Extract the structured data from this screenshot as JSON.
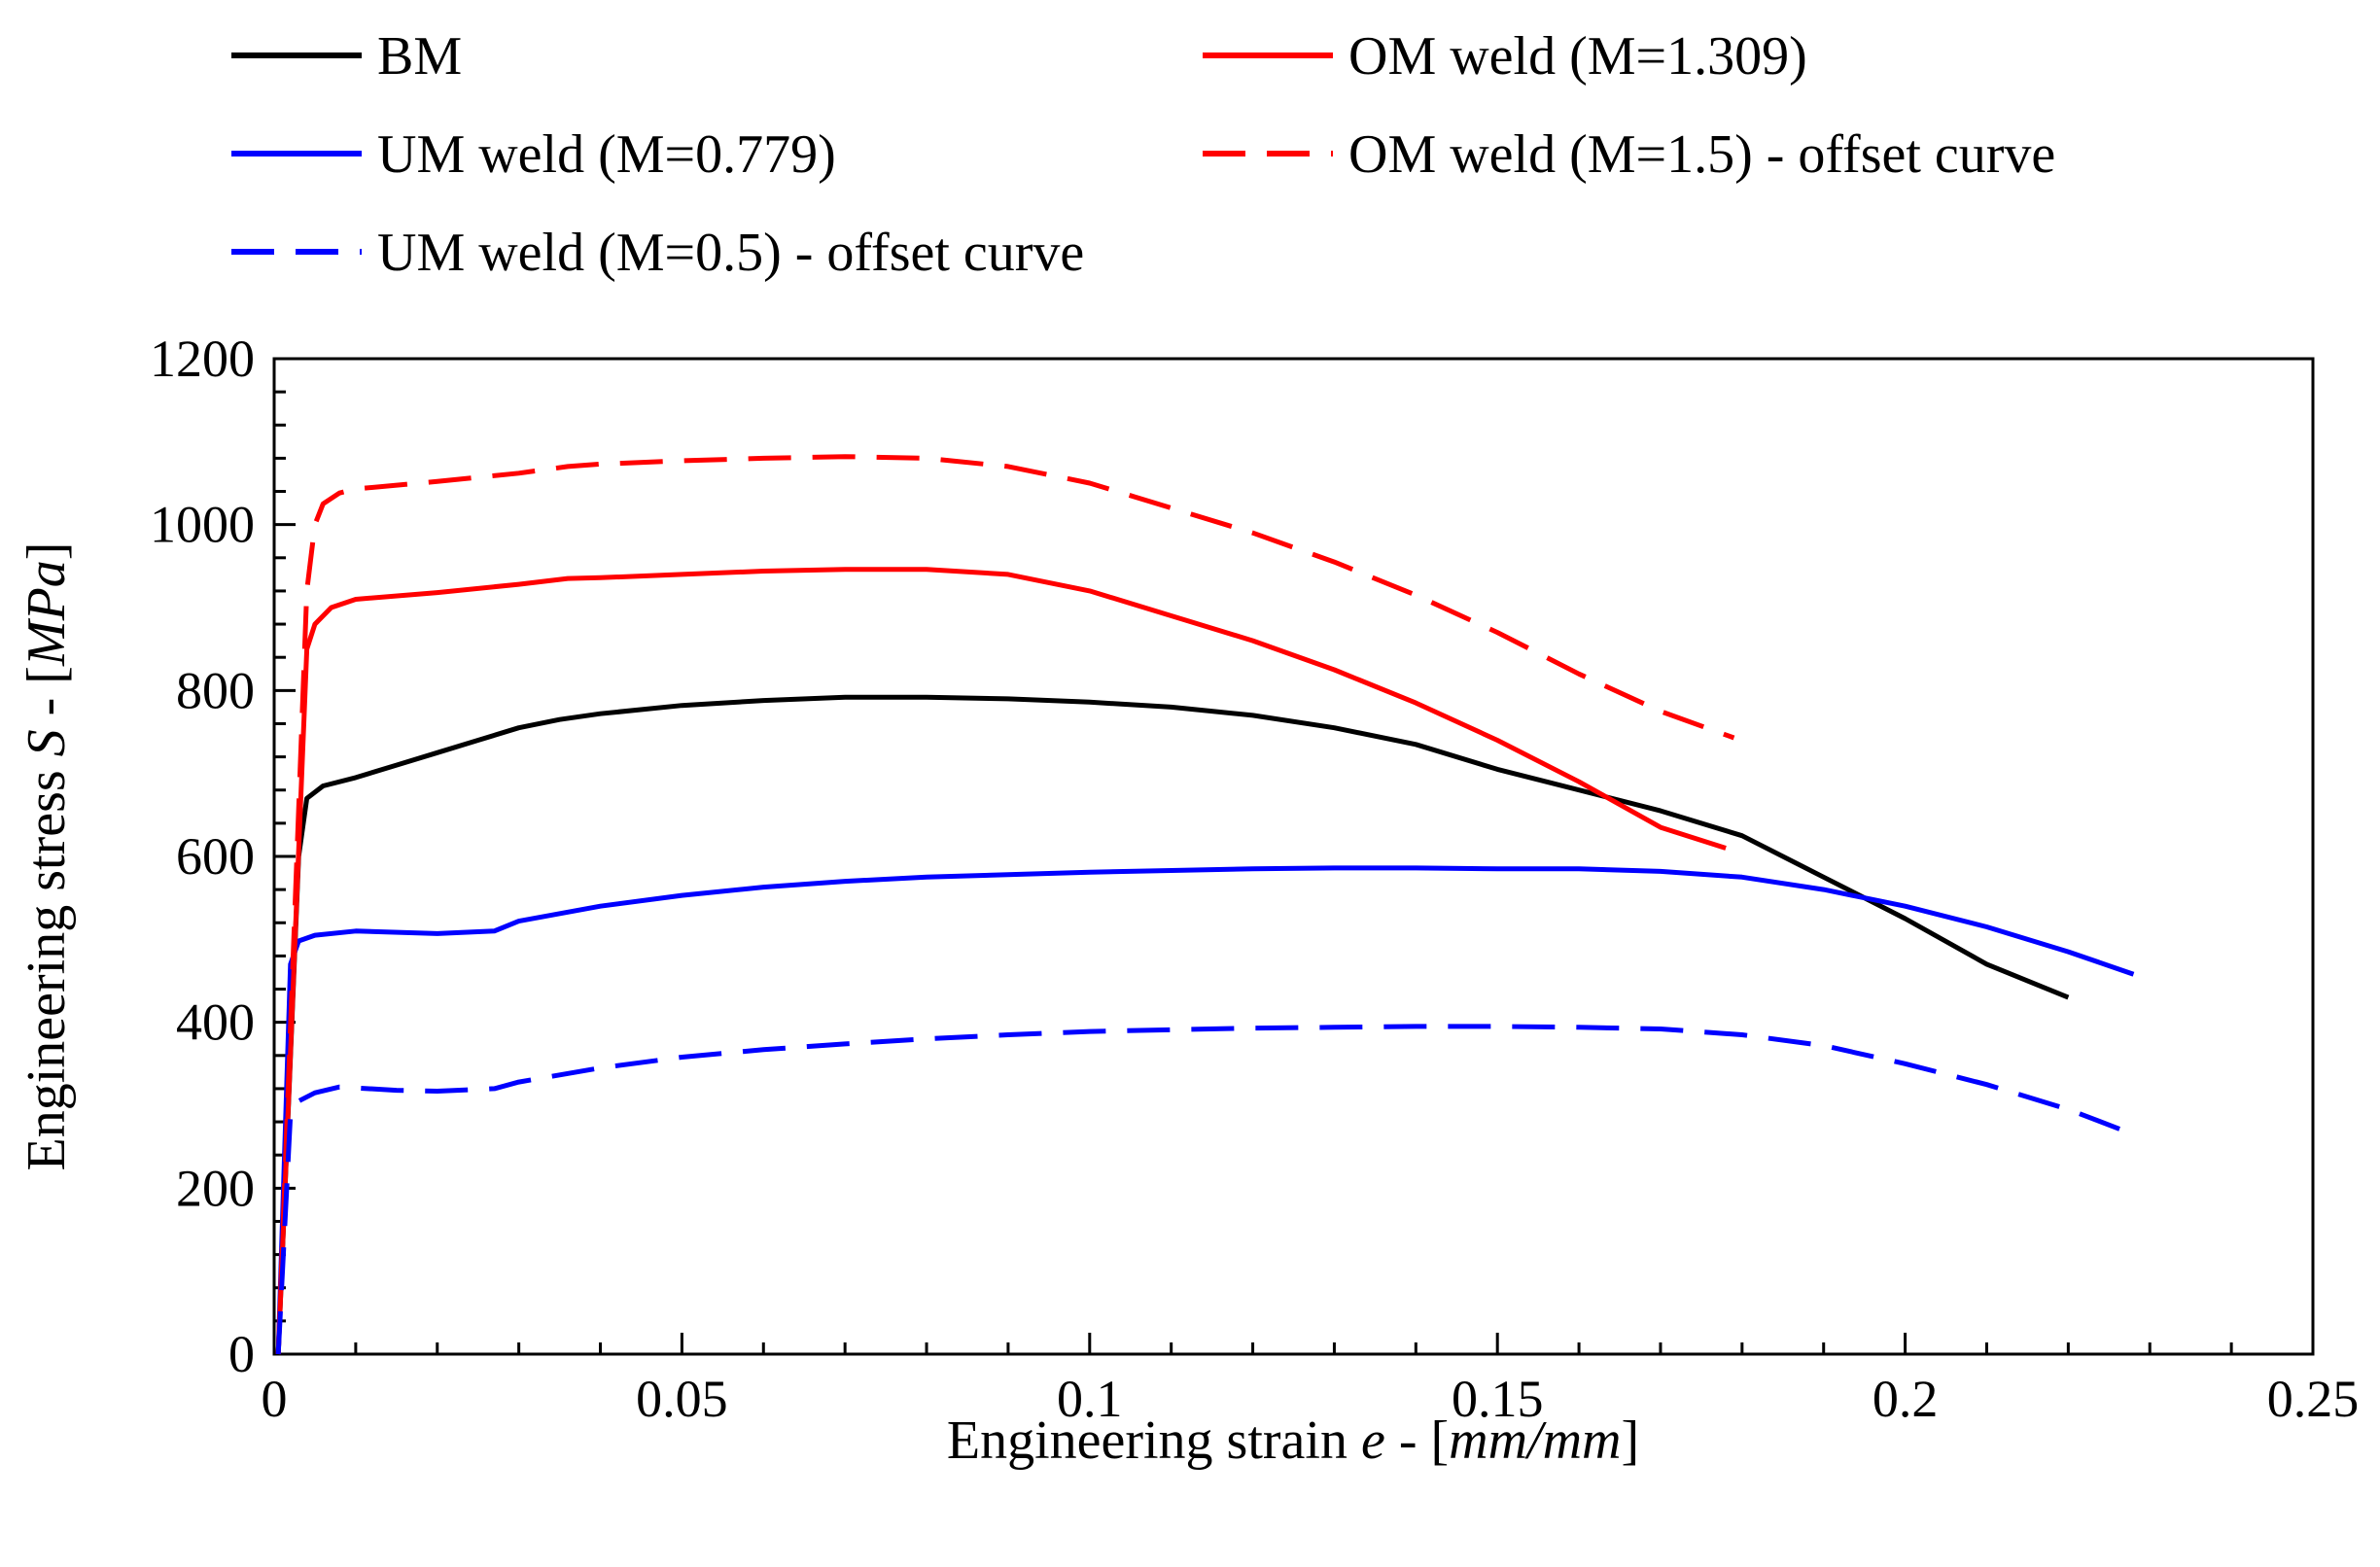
{
  "chart_data": {
    "type": "line",
    "xlabel": {
      "prefix": "Engineering strain ",
      "symbol": "e",
      "sep": " - [",
      "units": "mm/mm",
      "suffix": "]"
    },
    "ylabel": {
      "prefix": "Engineering stress ",
      "symbol": "S",
      "sep": " - [",
      "units": "MPa",
      "suffix": "]"
    },
    "xlim": [
      0,
      0.25
    ],
    "ylim": [
      0,
      1200
    ],
    "xticks": [
      0,
      0.05,
      0.1,
      0.15,
      0.2,
      0.25
    ],
    "xtick_labels": [
      "0",
      "0.05",
      "0.1",
      "0.15",
      "0.2",
      "0.25"
    ],
    "yticks": [
      0,
      200,
      400,
      600,
      800,
      1000,
      1200
    ],
    "ytick_labels": [
      "0",
      "200",
      "400",
      "600",
      "800",
      "1000",
      "1200"
    ],
    "grid": false,
    "legend_position": "top",
    "series": [
      {
        "name": "BM",
        "color": "#000000",
        "dash": "solid",
        "x": [
          0.0005,
          0.003,
          0.004,
          0.006,
          0.01,
          0.015,
          0.02,
          0.025,
          0.03,
          0.035,
          0.04,
          0.05,
          0.06,
          0.07,
          0.08,
          0.09,
          0.1,
          0.11,
          0.12,
          0.13,
          0.14,
          0.15,
          0.16,
          0.17,
          0.18,
          0.19,
          0.2,
          0.21,
          0.22
        ],
        "y": [
          0,
          600,
          670,
          685,
          695,
          710,
          725,
          740,
          755,
          765,
          772,
          782,
          788,
          792,
          792,
          790,
          786,
          780,
          770,
          755,
          735,
          705,
          680,
          655,
          625,
          575,
          525,
          470,
          430
        ]
      },
      {
        "name": "UM weld (M=0.779)",
        "color": "#0000ff",
        "dash": "solid",
        "x": [
          0.0005,
          0.002,
          0.003,
          0.005,
          0.01,
          0.02,
          0.027,
          0.03,
          0.04,
          0.05,
          0.06,
          0.07,
          0.08,
          0.09,
          0.1,
          0.11,
          0.12,
          0.13,
          0.14,
          0.15,
          0.16,
          0.17,
          0.18,
          0.19,
          0.2,
          0.21,
          0.22,
          0.228
        ],
        "y": [
          0,
          470,
          498,
          505,
          510,
          507,
          510,
          522,
          540,
          553,
          563,
          570,
          575,
          578,
          581,
          583,
          585,
          586,
          586,
          585,
          585,
          582,
          575,
          560,
          540,
          515,
          485,
          458
        ]
      },
      {
        "name": "OM weld (M=1.309)",
        "color": "#ff0000",
        "dash": "solid",
        "x": [
          0.0005,
          0.004,
          0.005,
          0.007,
          0.01,
          0.02,
          0.03,
          0.036,
          0.04,
          0.05,
          0.06,
          0.07,
          0.08,
          0.09,
          0.1,
          0.11,
          0.12,
          0.13,
          0.14,
          0.15,
          0.16,
          0.17,
          0.178
        ],
        "y": [
          0,
          850,
          880,
          900,
          910,
          918,
          928,
          935,
          936,
          940,
          944,
          946,
          946,
          940,
          920,
          890,
          860,
          825,
          785,
          740,
          690,
          635,
          610
        ]
      },
      {
        "name": "OM weld (M=1.5) - offset curve",
        "color": "#ff0000",
        "dash": "dashed",
        "x": [
          0.0005,
          0.004,
          0.005,
          0.006,
          0.008,
          0.01,
          0.02,
          0.03,
          0.036,
          0.04,
          0.05,
          0.06,
          0.07,
          0.08,
          0.09,
          0.1,
          0.11,
          0.12,
          0.13,
          0.14,
          0.15,
          0.16,
          0.17,
          0.179
        ],
        "y": [
          0,
          920,
          1000,
          1025,
          1038,
          1043,
          1052,
          1062,
          1070,
          1073,
          1077,
          1080,
          1082,
          1080,
          1070,
          1050,
          1020,
          990,
          955,
          915,
          870,
          820,
          775,
          743
        ]
      },
      {
        "name": "UM weld (M=0.5) - offset curve",
        "color": "#0000ff",
        "dash": "dashed",
        "x": [
          0.0005,
          0.002,
          0.003,
          0.005,
          0.008,
          0.015,
          0.02,
          0.027,
          0.03,
          0.04,
          0.05,
          0.06,
          0.07,
          0.08,
          0.09,
          0.1,
          0.11,
          0.12,
          0.13,
          0.14,
          0.15,
          0.16,
          0.17,
          0.18,
          0.19,
          0.2,
          0.21,
          0.22,
          0.228
        ],
        "y": [
          0,
          290,
          305,
          315,
          322,
          318,
          317,
          320,
          328,
          345,
          358,
          367,
          374,
          380,
          385,
          389,
          391,
          393,
          394,
          395,
          395,
          394,
          392,
          385,
          372,
          350,
          325,
          295,
          265
        ]
      }
    ]
  }
}
